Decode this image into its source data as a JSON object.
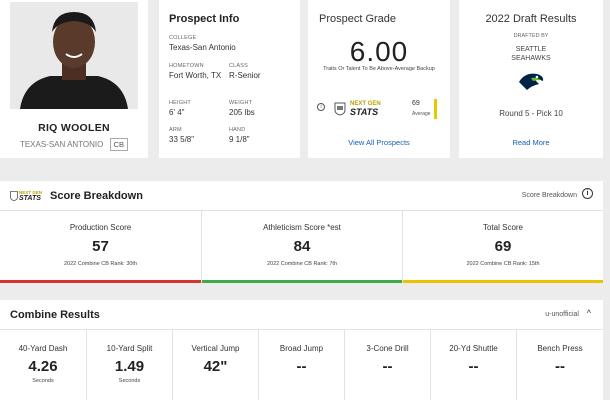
{
  "player": {
    "name": "RIQ WOOLEN",
    "school": "TEXAS-SAN ANTONIO",
    "position": "CB"
  },
  "prospect_info": {
    "title": "Prospect Info",
    "fields": [
      {
        "label": "COLLEGE",
        "value": "Texas-San Antonio"
      },
      {
        "label": "HOMETOWN",
        "value": "Fort Worth, TX"
      },
      {
        "label": "CLASS",
        "value": "R-Senior"
      },
      {
        "label": "HEIGHT",
        "value": "6' 4\""
      },
      {
        "label": "WEIGHT",
        "value": "205 lbs"
      },
      {
        "label": "ARM",
        "value": "33 5/8\""
      },
      {
        "label": "HAND",
        "value": "9 1/8\""
      }
    ]
  },
  "prospect_grade": {
    "title": "Prospect Grade",
    "grade": "6.00",
    "description": "Traits Or Talent To Be Above-Average Backup",
    "ngs_top": "NEXT GEN",
    "ngs_bottom": "STATS",
    "ngs_score": "69",
    "ngs_label": "Average",
    "info_glyph": "i",
    "link": "View All Prospects"
  },
  "draft_results": {
    "title": "2022 Draft Results",
    "drafted_by_label": "DRAFTED BY",
    "team_line1": "SEATTLE",
    "team_line2": "SEAHAWKS",
    "pick": "Round 5 - Pick 10",
    "link": "Read More"
  },
  "score_breakdown": {
    "logo_top": "NEXT GEN",
    "logo_bottom": "STATS",
    "title": "Score Breakdown",
    "right_label": "Score Breakdown",
    "info_glyph": "i",
    "scores": [
      {
        "label": "Production Score",
        "value": "57",
        "rank": "2022 Combine CB Rank: 30th",
        "bar_color": "#d9342b"
      },
      {
        "label": "Athleticism Score *est",
        "value": "84",
        "rank": "2022 Combine CB Rank: 7th",
        "bar_color": "#3cab48"
      },
      {
        "label": "Total Score",
        "value": "69",
        "rank": "2022 Combine CB Rank: 15th",
        "bar_color": "#e8c400"
      }
    ]
  },
  "combine_results": {
    "title": "Combine Results",
    "right_label": "u-unofficial",
    "chevron_glyph": "^",
    "drills": [
      {
        "label": "40-Yard Dash",
        "value": "4.26",
        "unit": "Seconds"
      },
      {
        "label": "10-Yard Split",
        "value": "1.49",
        "unit": "Seconds"
      },
      {
        "label": "Vertical Jump",
        "value": "42\"",
        "unit": ""
      },
      {
        "label": "Broad Jump",
        "value": "--",
        "unit": ""
      },
      {
        "label": "3-Cone Drill",
        "value": "--",
        "unit": ""
      },
      {
        "label": "20-Yd Shuttle",
        "value": "--",
        "unit": ""
      },
      {
        "label": "Bench Press",
        "value": "--",
        "unit": ""
      }
    ]
  },
  "colors": {
    "link": "#1a5fb4",
    "ngs_gold": "#b7a200",
    "seahawks_navy": "#002244",
    "seahawks_green": "#69be28"
  }
}
